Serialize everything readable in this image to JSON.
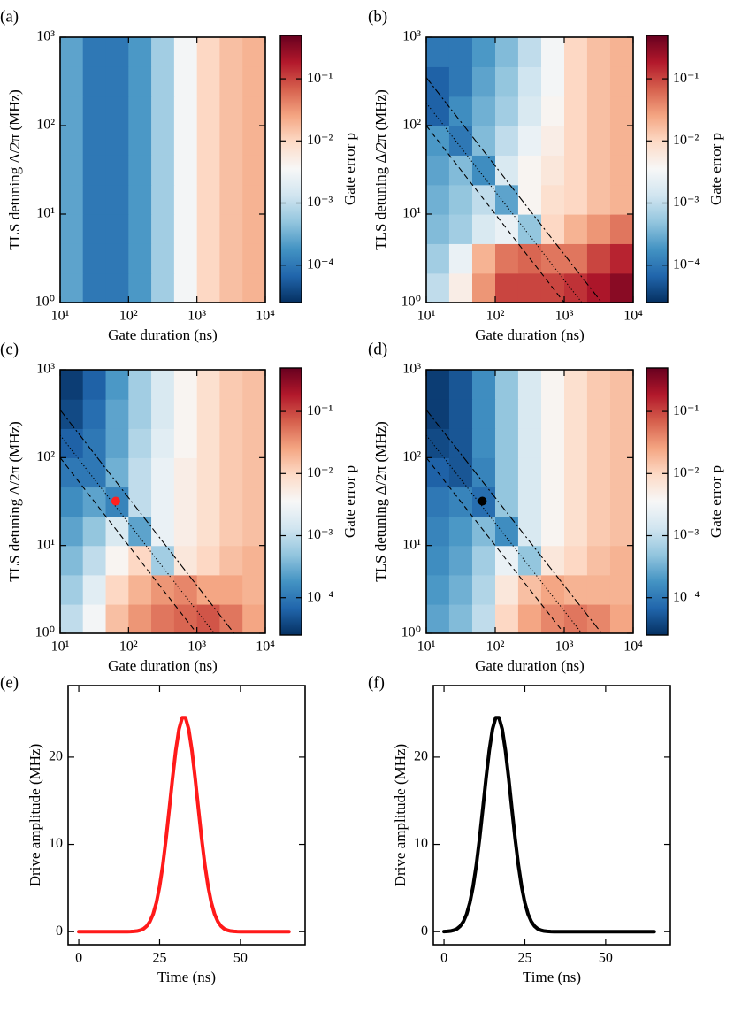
{
  "chart_data": [
    {
      "type": "heatmap",
      "panel": "(a)",
      "xlabel": "Gate duration (ns)",
      "ylabel": "TLS detuning Δ/2π (MHz)",
      "colorbar_label": "Gate error p",
      "xscale": "log",
      "yscale": "log",
      "xlim": [
        10,
        10000
      ],
      "ylim": [
        1,
        1000
      ],
      "zlim": [
        2.5e-05,
        0.5
      ],
      "xticks": [
        {
          "value": 10,
          "label": "10¹"
        },
        {
          "value": 100,
          "label": "10²"
        },
        {
          "value": 1000,
          "label": "10³"
        },
        {
          "value": 10000,
          "label": "10⁴"
        }
      ],
      "yticks": [
        {
          "value": 1,
          "label": "10⁰"
        },
        {
          "value": 10,
          "label": "10¹"
        },
        {
          "value": 100,
          "label": "10²"
        },
        {
          "value": 1000,
          "label": "10³"
        }
      ],
      "zticks": [
        {
          "value": 0.0001,
          "label": "10⁻⁴"
        },
        {
          "value": 0.001,
          "label": "10⁻³"
        },
        {
          "value": 0.01,
          "label": "10⁻²"
        },
        {
          "value": 0.1,
          "label": "10⁻¹"
        }
      ],
      "colormap": [
        "#053061",
        "#2166ac",
        "#4393c3",
        "#92c5de",
        "#d1e5f0",
        "#f7f7f7",
        "#fddbc7",
        "#f4a582",
        "#d6604d",
        "#b2182b",
        "#67001f"
      ],
      "xbins": [
        10,
        21.5,
        46.4,
        100,
        215,
        464,
        1000,
        2150,
        4640,
        10000
      ],
      "ybins": [
        1,
        2.15,
        4.64,
        10,
        21.5,
        46.4,
        100,
        215,
        464,
        1000
      ],
      "z": [
        [
          0.00025,
          0.0001,
          0.0001,
          0.0002,
          0.00063,
          0.0032,
          0.01,
          0.016,
          0.02
        ],
        [
          0.00025,
          0.0001,
          0.0001,
          0.0002,
          0.00063,
          0.0032,
          0.01,
          0.016,
          0.02
        ],
        [
          0.00025,
          0.0001,
          0.0001,
          0.0002,
          0.00063,
          0.0032,
          0.01,
          0.016,
          0.02
        ],
        [
          0.00025,
          0.0001,
          0.0001,
          0.0002,
          0.00063,
          0.0032,
          0.01,
          0.016,
          0.02
        ],
        [
          0.00025,
          0.0001,
          0.0001,
          0.0002,
          0.00063,
          0.0032,
          0.01,
          0.016,
          0.02
        ],
        [
          0.00025,
          0.0001,
          0.0001,
          0.0002,
          0.00063,
          0.0032,
          0.01,
          0.016,
          0.02
        ],
        [
          0.00025,
          0.0001,
          0.0001,
          0.0002,
          0.00063,
          0.0032,
          0.01,
          0.016,
          0.02
        ],
        [
          0.00025,
          0.0001,
          0.0001,
          0.0002,
          0.00063,
          0.0032,
          0.01,
          0.016,
          0.02
        ],
        [
          0.00025,
          0.0001,
          0.0001,
          0.0002,
          0.00063,
          0.0032,
          0.01,
          0.016,
          0.02
        ]
      ]
    },
    {
      "type": "heatmap",
      "panel": "(b)",
      "xlabel": "Gate duration (ns)",
      "ylabel": "TLS detuning Δ/2π (MHz)",
      "colorbar_label": "Gate error p",
      "xscale": "log",
      "yscale": "log",
      "xlim": [
        10,
        10000
      ],
      "ylim": [
        1,
        1000
      ],
      "zlim": [
        2.5e-05,
        0.5
      ],
      "xticks": [
        {
          "value": 10,
          "label": "10¹"
        },
        {
          "value": 100,
          "label": "10²"
        },
        {
          "value": 1000,
          "label": "10³"
        },
        {
          "value": 10000,
          "label": "10⁴"
        }
      ],
      "yticks": [
        {
          "value": 1,
          "label": "10⁰"
        },
        {
          "value": 10,
          "label": "10¹"
        },
        {
          "value": 100,
          "label": "10²"
        },
        {
          "value": 1000,
          "label": "10³"
        }
      ],
      "zticks": [
        {
          "value": 0.0001,
          "label": "10⁻⁴"
        },
        {
          "value": 0.001,
          "label": "10⁻³"
        },
        {
          "value": 0.01,
          "label": "10⁻²"
        },
        {
          "value": 0.1,
          "label": "10⁻¹"
        }
      ],
      "colormap": [
        "#053061",
        "#2166ac",
        "#4393c3",
        "#92c5de",
        "#d1e5f0",
        "#f7f7f7",
        "#fddbc7",
        "#f4a582",
        "#d6604d",
        "#b2182b",
        "#67001f"
      ],
      "xbins": [
        10,
        21.5,
        46.4,
        100,
        215,
        464,
        1000,
        2150,
        4640,
        10000
      ],
      "ybins": [
        1,
        2.15,
        4.64,
        10,
        21.5,
        46.4,
        100,
        215,
        464,
        1000
      ],
      "z": [
        [
          0.001,
          0.005,
          0.032,
          0.1,
          0.1,
          0.1,
          0.13,
          0.2,
          0.32
        ],
        [
          0.00063,
          0.0025,
          0.02,
          0.05,
          0.063,
          0.05,
          0.05,
          0.1,
          0.16
        ],
        [
          0.0004,
          0.00063,
          0.0016,
          0.0025,
          0.0005,
          0.01,
          0.02,
          0.032,
          0.05
        ],
        [
          0.00032,
          0.0005,
          0.001,
          0.00025,
          0.004,
          0.008,
          0.01,
          0.016,
          0.02
        ],
        [
          0.00025,
          0.0004,
          0.00016,
          0.0016,
          0.004,
          0.0063,
          0.01,
          0.016,
          0.02
        ],
        [
          0.0002,
          0.0001,
          0.0004,
          0.001,
          0.0025,
          0.005,
          0.01,
          0.016,
          0.02
        ],
        [
          6.3e-05,
          0.00016,
          0.00032,
          0.00063,
          0.0016,
          0.004,
          0.01,
          0.016,
          0.02
        ],
        [
          6.3e-05,
          0.0001,
          0.00025,
          0.0005,
          0.0013,
          0.0032,
          0.01,
          0.016,
          0.02
        ],
        [
          0.0001,
          0.0001,
          0.0002,
          0.0004,
          0.001,
          0.0032,
          0.01,
          0.016,
          0.02
        ]
      ],
      "lines": [
        {
          "style": "dashdot",
          "x": [
            10,
            3500
          ],
          "y": [
            350,
            1
          ]
        },
        {
          "style": "dotted",
          "x": [
            10,
            1800
          ],
          "y": [
            180,
            1
          ]
        },
        {
          "style": "dashed",
          "x": [
            10,
            1000
          ],
          "y": [
            100,
            1
          ]
        }
      ]
    },
    {
      "type": "heatmap",
      "panel": "(c)",
      "xlabel": "Gate duration (ns)",
      "ylabel": "TLS detuning Δ/2π (MHz)",
      "colorbar_label": "Gate error p",
      "xscale": "log",
      "yscale": "log",
      "xlim": [
        10,
        10000
      ],
      "ylim": [
        1,
        1000
      ],
      "zlim": [
        2.5e-05,
        0.5
      ],
      "xticks": [
        {
          "value": 10,
          "label": "10¹"
        },
        {
          "value": 100,
          "label": "10²"
        },
        {
          "value": 1000,
          "label": "10³"
        },
        {
          "value": 10000,
          "label": "10⁴"
        }
      ],
      "yticks": [
        {
          "value": 1,
          "label": "10⁰"
        },
        {
          "value": 10,
          "label": "10¹"
        },
        {
          "value": 100,
          "label": "10²"
        },
        {
          "value": 1000,
          "label": "10³"
        }
      ],
      "zticks": [
        {
          "value": 0.0001,
          "label": "10⁻⁴"
        },
        {
          "value": 0.001,
          "label": "10⁻³"
        },
        {
          "value": 0.01,
          "label": "10⁻²"
        },
        {
          "value": 0.1,
          "label": "10⁻¹"
        }
      ],
      "colormap": [
        "#053061",
        "#2166ac",
        "#4393c3",
        "#92c5de",
        "#d1e5f0",
        "#f7f7f7",
        "#fddbc7",
        "#f4a582",
        "#d6604d",
        "#b2182b",
        "#67001f"
      ],
      "xbins": [
        10,
        21.5,
        46.4,
        100,
        215,
        464,
        1000,
        2150,
        4640,
        10000
      ],
      "ybins": [
        1,
        2.15,
        4.64,
        10,
        21.5,
        46.4,
        100,
        215,
        464,
        1000
      ],
      "z": [
        [
          0.001,
          0.0032,
          0.016,
          0.032,
          0.05,
          0.063,
          0.08,
          0.05,
          0.025
        ],
        [
          0.00063,
          0.002,
          0.01,
          0.02,
          0.032,
          0.04,
          0.025,
          0.025,
          0.02
        ],
        [
          0.0004,
          0.001,
          0.004,
          0.01,
          0.00063,
          0.0063,
          0.01,
          0.016,
          0.02
        ],
        [
          0.00025,
          0.0005,
          0.0016,
          0.00025,
          0.0025,
          0.005,
          0.008,
          0.013,
          0.016
        ],
        [
          0.00016,
          0.00025,
          0.00013,
          0.001,
          0.0025,
          0.005,
          0.008,
          0.013,
          0.016
        ],
        [
          0.0001,
          0.0001,
          0.00032,
          0.001,
          0.0025,
          0.005,
          0.008,
          0.013,
          0.016
        ],
        [
          6.3e-05,
          0.0001,
          0.00025,
          0.0008,
          0.002,
          0.004,
          0.008,
          0.013,
          0.016
        ],
        [
          4e-05,
          8e-05,
          0.00025,
          0.00063,
          0.0016,
          0.004,
          0.008,
          0.013,
          0.016
        ],
        [
          3.2e-05,
          6.3e-05,
          0.0002,
          0.00063,
          0.0016,
          0.004,
          0.008,
          0.013,
          0.016
        ]
      ],
      "lines": [
        {
          "style": "dashdot",
          "x": [
            10,
            3500
          ],
          "y": [
            350,
            1
          ]
        },
        {
          "style": "dotted",
          "x": [
            10,
            1800
          ],
          "y": [
            180,
            1
          ]
        },
        {
          "style": "dashed",
          "x": [
            10,
            1000
          ],
          "y": [
            100,
            1
          ]
        }
      ],
      "points": [
        {
          "x": 65,
          "y": 32,
          "color": "#ff2020"
        }
      ]
    },
    {
      "type": "heatmap",
      "panel": "(d)",
      "xlabel": "Gate duration (ns)",
      "ylabel": "TLS detuning Δ/2π (MHz)",
      "colorbar_label": "Gate error p",
      "xscale": "log",
      "yscale": "log",
      "xlim": [
        10,
        10000
      ],
      "ylim": [
        1,
        1000
      ],
      "zlim": [
        2.5e-05,
        0.5
      ],
      "xticks": [
        {
          "value": 10,
          "label": "10¹"
        },
        {
          "value": 100,
          "label": "10²"
        },
        {
          "value": 1000,
          "label": "10³"
        },
        {
          "value": 10000,
          "label": "10⁴"
        }
      ],
      "yticks": [
        {
          "value": 1,
          "label": "10⁰"
        },
        {
          "value": 10,
          "label": "10¹"
        },
        {
          "value": 100,
          "label": "10²"
        },
        {
          "value": 1000,
          "label": "10³"
        }
      ],
      "zticks": [
        {
          "value": 0.0001,
          "label": "10⁻⁴"
        },
        {
          "value": 0.001,
          "label": "10⁻³"
        },
        {
          "value": 0.01,
          "label": "10⁻²"
        },
        {
          "value": 0.1,
          "label": "10⁻¹"
        }
      ],
      "colormap": [
        "#053061",
        "#2166ac",
        "#4393c3",
        "#92c5de",
        "#d1e5f0",
        "#f7f7f7",
        "#fddbc7",
        "#f4a582",
        "#d6604d",
        "#b2182b",
        "#67001f"
      ],
      "xbins": [
        10,
        21.5,
        46.4,
        100,
        215,
        464,
        1000,
        2150,
        4640,
        10000
      ],
      "ybins": [
        1,
        2.15,
        4.64,
        10,
        21.5,
        46.4,
        100,
        215,
        464,
        1000
      ],
      "z": [
        [
          0.00025,
          0.0004,
          0.001,
          0.01,
          0.025,
          0.04,
          0.05,
          0.04,
          0.025
        ],
        [
          0.0002,
          0.00032,
          0.0008,
          0.0063,
          0.016,
          0.025,
          0.02,
          0.02,
          0.02
        ],
        [
          0.00016,
          0.00025,
          0.00063,
          0.0025,
          0.0005,
          0.0063,
          0.01,
          0.016,
          0.02
        ],
        [
          0.00013,
          0.0002,
          0.0004,
          0.00016,
          0.0016,
          0.004,
          0.008,
          0.013,
          0.016
        ],
        [
          0.0001,
          0.00013,
          8e-05,
          0.0005,
          0.0016,
          0.004,
          0.008,
          0.013,
          0.016
        ],
        [
          6.3e-05,
          5e-05,
          0.00013,
          0.0005,
          0.0016,
          0.004,
          0.008,
          0.013,
          0.016
        ],
        [
          4e-05,
          5e-05,
          0.00016,
          0.0005,
          0.0016,
          0.004,
          0.008,
          0.013,
          0.016
        ],
        [
          3.2e-05,
          5e-05,
          0.00016,
          0.0005,
          0.0016,
          0.004,
          0.008,
          0.013,
          0.016
        ],
        [
          3.2e-05,
          5e-05,
          0.00016,
          0.0005,
          0.0016,
          0.004,
          0.008,
          0.013,
          0.016
        ]
      ],
      "lines": [
        {
          "style": "dashdot",
          "x": [
            10,
            3500
          ],
          "y": [
            350,
            1
          ]
        },
        {
          "style": "dotted",
          "x": [
            10,
            1800
          ],
          "y": [
            180,
            1
          ]
        },
        {
          "style": "dashed",
          "x": [
            10,
            1000
          ],
          "y": [
            100,
            1
          ]
        }
      ],
      "points": [
        {
          "x": 65,
          "y": 32,
          "color": "#000000"
        }
      ]
    },
    {
      "type": "line",
      "panel": "(e)",
      "xlabel": "Time (ns)",
      "ylabel": "Drive amplitude (MHz)",
      "color": "#ff1a1a",
      "xlim": [
        -3.3,
        70
      ],
      "ylim": [
        -1.5,
        28.2
      ],
      "xticks": [
        0,
        25,
        50
      ],
      "yticks": [
        0,
        10,
        20
      ],
      "x": [
        0,
        1,
        2,
        3,
        4,
        5,
        6,
        7,
        8,
        9,
        10,
        11,
        12,
        13,
        14,
        15,
        16,
        17,
        18,
        19,
        20,
        21,
        22,
        23,
        24,
        25,
        26,
        27,
        28,
        29,
        30,
        31,
        32,
        33,
        34,
        35,
        36,
        37,
        38,
        39,
        40,
        41,
        42,
        43,
        44,
        45,
        46,
        47,
        48,
        49,
        50,
        51,
        52,
        53,
        54,
        55,
        56,
        57,
        58,
        59,
        60,
        61,
        62,
        63,
        64,
        65
      ],
      "values": [
        0,
        0,
        0,
        0,
        0,
        0,
        0,
        0,
        0,
        0,
        0,
        0,
        0,
        0,
        0,
        0,
        0.01,
        0.03,
        0.07,
        0.16,
        0.32,
        0.63,
        1.16,
        2.01,
        3.32,
        5.18,
        7.64,
        10.66,
        14.07,
        17.58,
        20.76,
        23.2,
        24.53,
        24.53,
        23.2,
        20.76,
        17.58,
        14.07,
        10.66,
        7.64,
        5.18,
        3.32,
        2.01,
        1.16,
        0.63,
        0.32,
        0.16,
        0.07,
        0.03,
        0.01,
        0,
        0,
        0,
        0,
        0,
        0,
        0,
        0,
        0,
        0,
        0,
        0,
        0,
        0,
        0,
        0
      ]
    },
    {
      "type": "line",
      "panel": "(f)",
      "xlabel": "Time (ns)",
      "ylabel": "Drive amplitude (MHz)",
      "color": "#000000",
      "xlim": [
        -3.3,
        70
      ],
      "ylim": [
        -1.5,
        28.2
      ],
      "xticks": [
        0,
        25,
        50
      ],
      "yticks": [
        0,
        10,
        20
      ],
      "x": [
        0,
        1,
        2,
        3,
        4,
        5,
        6,
        7,
        8,
        9,
        10,
        11,
        12,
        13,
        14,
        15,
        16,
        17,
        18,
        19,
        20,
        21,
        22,
        23,
        24,
        25,
        26,
        27,
        28,
        29,
        30,
        31,
        32,
        33,
        34,
        35,
        36,
        37,
        38,
        39,
        40,
        41,
        42,
        43,
        44,
        45,
        46,
        47,
        48,
        49,
        50,
        51,
        52,
        53,
        54,
        55,
        56,
        57,
        58,
        59,
        60,
        61,
        62,
        63,
        64,
        65
      ],
      "values": [
        0.01,
        0.03,
        0.07,
        0.16,
        0.32,
        0.63,
        1.16,
        2.01,
        3.32,
        5.18,
        7.64,
        10.66,
        14.07,
        17.58,
        20.76,
        23.2,
        24.53,
        24.53,
        23.2,
        20.76,
        17.58,
        14.07,
        10.66,
        7.64,
        5.18,
        3.32,
        2.01,
        1.16,
        0.63,
        0.32,
        0.16,
        0.07,
        0.03,
        0.01,
        0,
        0,
        0,
        0,
        0,
        0,
        0,
        0,
        0,
        0,
        0,
        0,
        0,
        0,
        0,
        0,
        0,
        0,
        0,
        0,
        0,
        0,
        0,
        0,
        0,
        0,
        0,
        0,
        0,
        0,
        0,
        0
      ]
    }
  ]
}
